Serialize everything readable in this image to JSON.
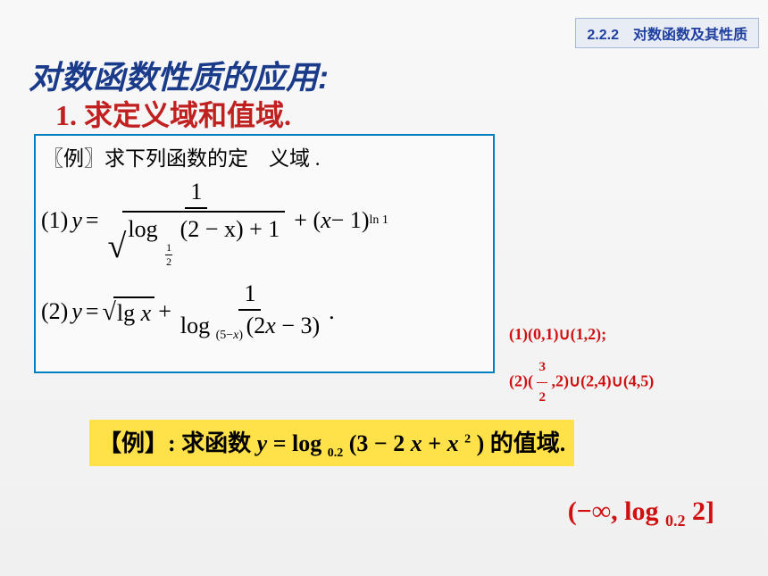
{
  "header": {
    "text": "2.2.2　对数函数及其性质",
    "bg_color": "#e8ecf5",
    "border_color": "#a8b8d8",
    "text_color": "#2040a0"
  },
  "title": {
    "text": "对数函数性质的应用:",
    "color": "#1a3a8a",
    "fontsize": 36
  },
  "subtitle": {
    "text": "1. 求定义域和值域.",
    "color": "#c02020",
    "fontsize": 32
  },
  "example_box": {
    "border_color": "#0080c0",
    "label": "〖例〗求下列函数的定　义域 .",
    "formula1": {
      "prefix": "(1)",
      "lhs_var": "y",
      "frac_num": "1",
      "sqrt_log_text": "log",
      "sqrt_log_base_num": "1",
      "sqrt_log_base_den": "2",
      "sqrt_arg": "(2 − x) + 1",
      "tail_open": " + (",
      "tail_var": "x",
      "tail_close": " − 1)",
      "tail_exp": "ln 1"
    },
    "formula2": {
      "prefix": "(2)",
      "lhs_var": "y",
      "sqrt_inner": "lg x",
      "plus": " + ",
      "frac_num": "1",
      "den_log": "log",
      "den_base_open": "(5−",
      "den_base_var": "x",
      "den_base_close": ")",
      "den_arg": "(2x − 3)",
      "tail": "."
    }
  },
  "answers": {
    "color": "#d01010",
    "line1_pre": "(1)(0,1)∪(1,2);",
    "line2_pre": "(2)(",
    "line2_frac_num": "3",
    "line2_frac_den": "2",
    "line2_post": ",2)∪(2,4)∪(4,5)"
  },
  "example2": {
    "bg_color": "#ffe24a",
    "pre": "【例】: 求函数",
    "var_y": "y",
    "eq": " = log",
    "base": "0.2",
    "arg_open": "(3 − 2",
    "arg_var1": "x",
    "arg_mid": " + ",
    "arg_var2": "x",
    "arg_exp": "2",
    "arg_close": " )",
    "post": "的值域."
  },
  "final_answer": {
    "color": "#d01010",
    "text_open": "(−∞, log",
    "sub": "0.2",
    "text_close": " 2]"
  }
}
